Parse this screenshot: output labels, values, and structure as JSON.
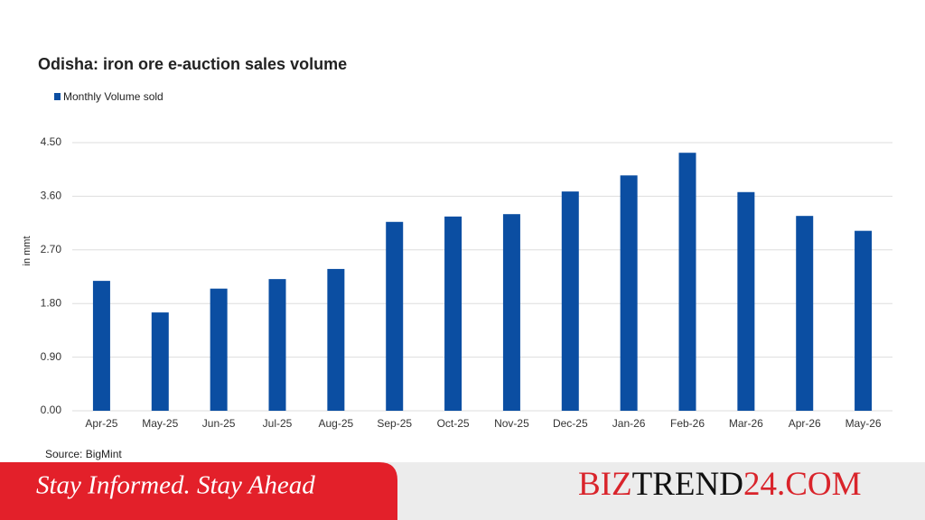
{
  "chart_data": {
    "type": "bar",
    "title": "Odisha: iron ore e-auction sales volume",
    "y_label": "in mmt",
    "source": "Source: BigMint",
    "categories": [
      "Apr-25",
      "May-25",
      "Jun-25",
      "Jul-25",
      "Aug-25",
      "Sep-25",
      "Oct-25",
      "Nov-25",
      "Dec-25",
      "Jan-26",
      "Feb-26",
      "Mar-26",
      "Apr-26",
      "May-26"
    ],
    "series": [
      {
        "name": "Monthly Volume sold",
        "color": "#0b4ea2",
        "values": [
          2.18,
          1.65,
          2.05,
          2.21,
          2.38,
          3.17,
          3.26,
          3.3,
          3.68,
          3.95,
          4.33,
          3.67,
          3.27,
          3.02
        ]
      }
    ],
    "ylim": [
      0,
      4.5
    ],
    "yticks": [
      {
        "value": 0,
        "label": "0.00"
      },
      {
        "value": 0.9,
        "label": "0.90"
      },
      {
        "value": 1.8,
        "label": "1.80"
      },
      {
        "value": 2.7,
        "label": "2.70"
      },
      {
        "value": 3.6,
        "label": "3.60"
      },
      {
        "value": 4.5,
        "label": "4.50"
      }
    ],
    "grid": true
  },
  "footer": {
    "tagline": "Stay Informed. Stay Ahead",
    "brand": [
      "BIZ",
      "TREND",
      "24.COM"
    ]
  }
}
